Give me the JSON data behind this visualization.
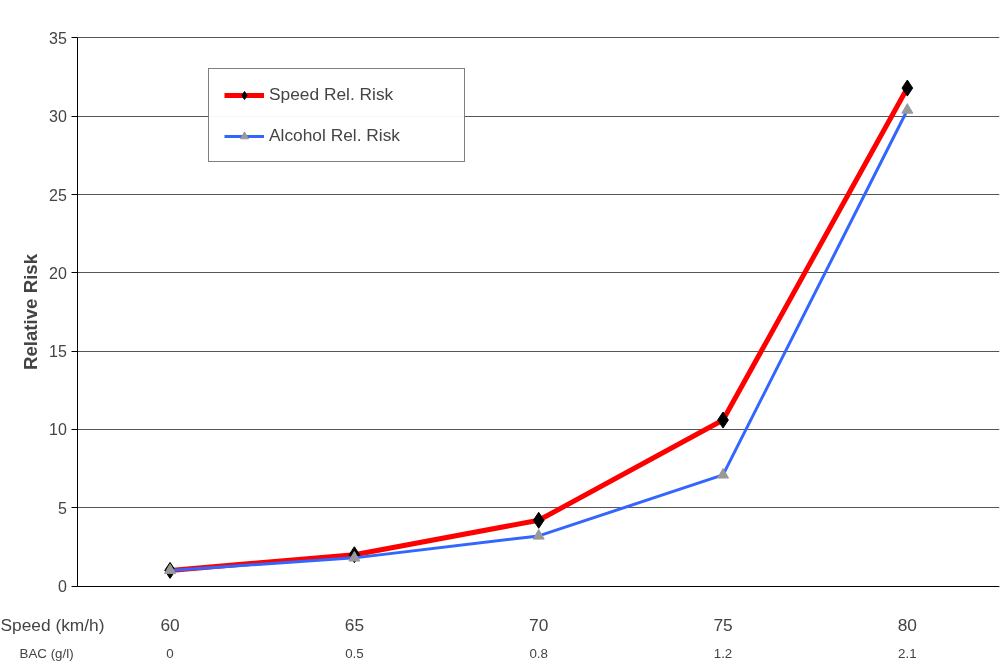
{
  "chart_data": {
    "type": "line",
    "ylabel": "Relative Risk",
    "xlabel": "Speed (km/h)",
    "categories": [
      "60",
      "65",
      "70",
      "75",
      "80"
    ],
    "series": [
      {
        "name": "Speed Rel. Risk",
        "color": "#ff0000",
        "marker": "diamond",
        "colors": [
          "#000000",
          "#000000",
          "#000000",
          "#000000",
          "#000000"
        ],
        "values": [
          1.0,
          2.0,
          4.2,
          10.6,
          31.8
        ]
      },
      {
        "name": "Alcohol Rel. Risk",
        "color": "#3366ff",
        "marker": "triangle",
        "colors": [
          "#999999",
          "#999999",
          "#999999",
          "#999999",
          "#999999"
        ],
        "values": [
          1.0,
          1.8,
          3.2,
          7.1,
          30.4
        ]
      }
    ],
    "ylim": [
      0,
      35
    ],
    "yticks": [
      0,
      5,
      10,
      15,
      20,
      25,
      30,
      35
    ],
    "grid": "y",
    "legend": "top left",
    "annotations": [
      "BAC (g/l)",
      "0",
      "0.5",
      "0.8",
      "1.2",
      "2.1"
    ]
  }
}
